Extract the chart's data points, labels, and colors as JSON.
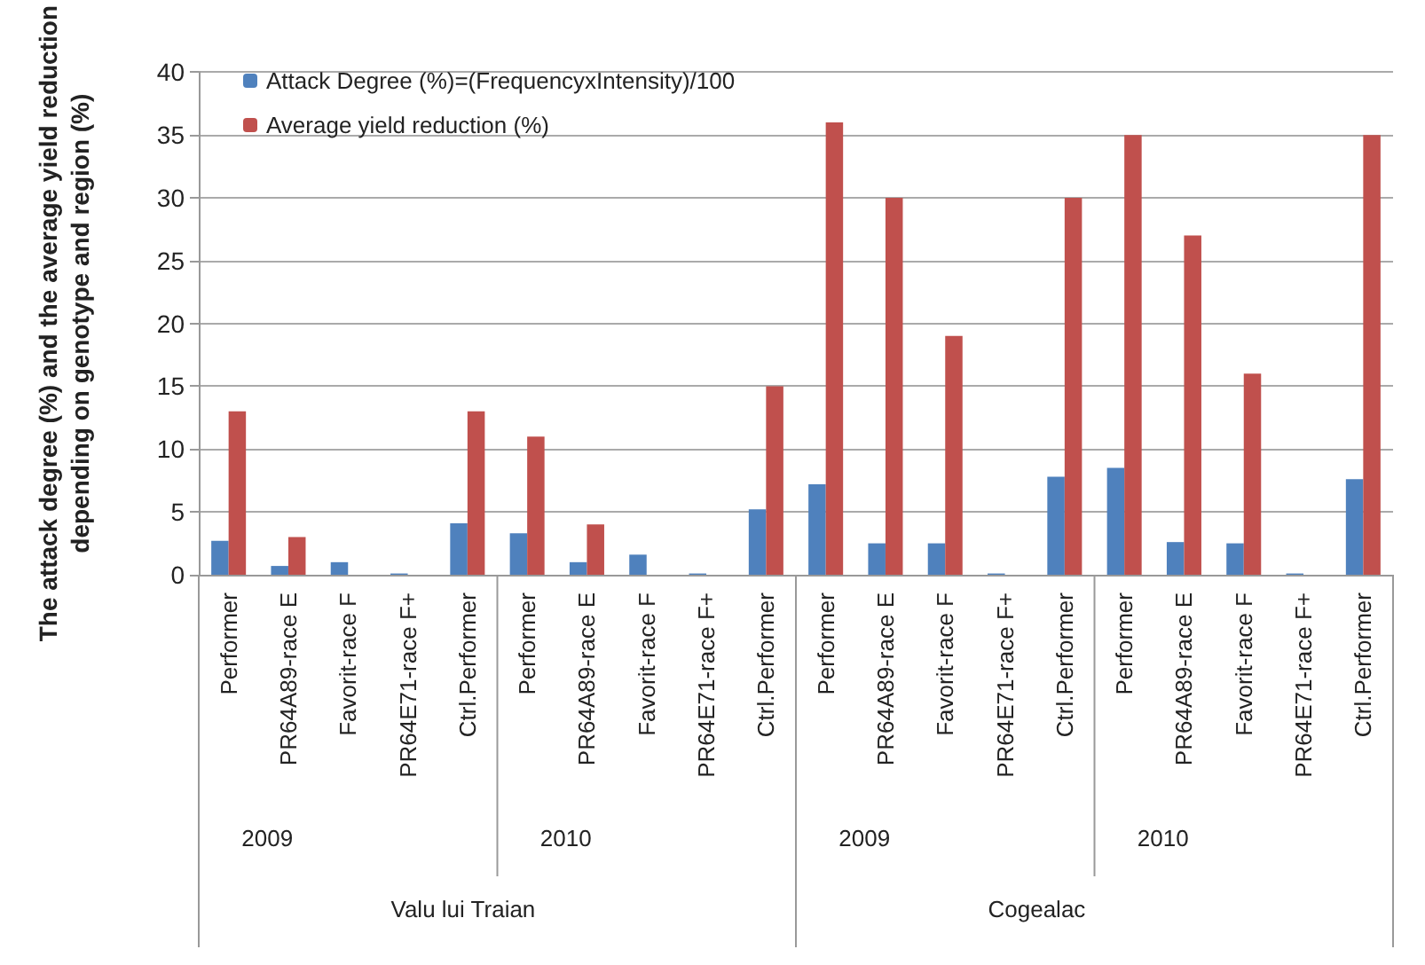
{
  "chart_data": {
    "type": "bar",
    "ylabel": "The attack degree (%) and the average yield reduction\ndepending on genotype and region (%)",
    "categories": [
      "Performer",
      "PR64A89-race E",
      "Favorit-race F",
      "PR64E71-race F+",
      "Ctrl.Performer",
      "Performer",
      "PR64A89-race E",
      "Favorit-race F",
      "PR64E71-race F+",
      "Ctrl.Performer",
      "Performer",
      "PR64A89-race E",
      "Favorit-race F",
      "PR64E71-race F+",
      "Ctrl.Performer",
      "Performer",
      "PR64A89-race E",
      "Favorit-race F",
      "PR64E71-race F+",
      "Ctrl.Performer"
    ],
    "series": [
      {
        "name": "Attack Degree (%)=(FrequencyxIntensity)/100",
        "color": "#4f81bd",
        "values": [
          2.7,
          0.7,
          1.0,
          0.1,
          4.1,
          3.3,
          1.0,
          1.6,
          0.1,
          5.2,
          7.2,
          2.5,
          2.5,
          0.1,
          7.8,
          8.5,
          2.6,
          2.5,
          0.1,
          7.6
        ]
      },
      {
        "name": "Average yield reduction (%)",
        "color": "#c0504d",
        "values": [
          13,
          3,
          0,
          0,
          13,
          11,
          4,
          0,
          0,
          15,
          36,
          30,
          19,
          0,
          30,
          35,
          27,
          16,
          0,
          35
        ]
      }
    ],
    "annotations": [
      "2009",
      "2010",
      "2009",
      "2010",
      "Valu lui Traian",
      "Cogealac"
    ],
    "ylim": [
      0,
      40
    ],
    "yticks": [
      0,
      5,
      10,
      15,
      20,
      25,
      30,
      35,
      40
    ],
    "grid": "y",
    "legend": "top left"
  }
}
